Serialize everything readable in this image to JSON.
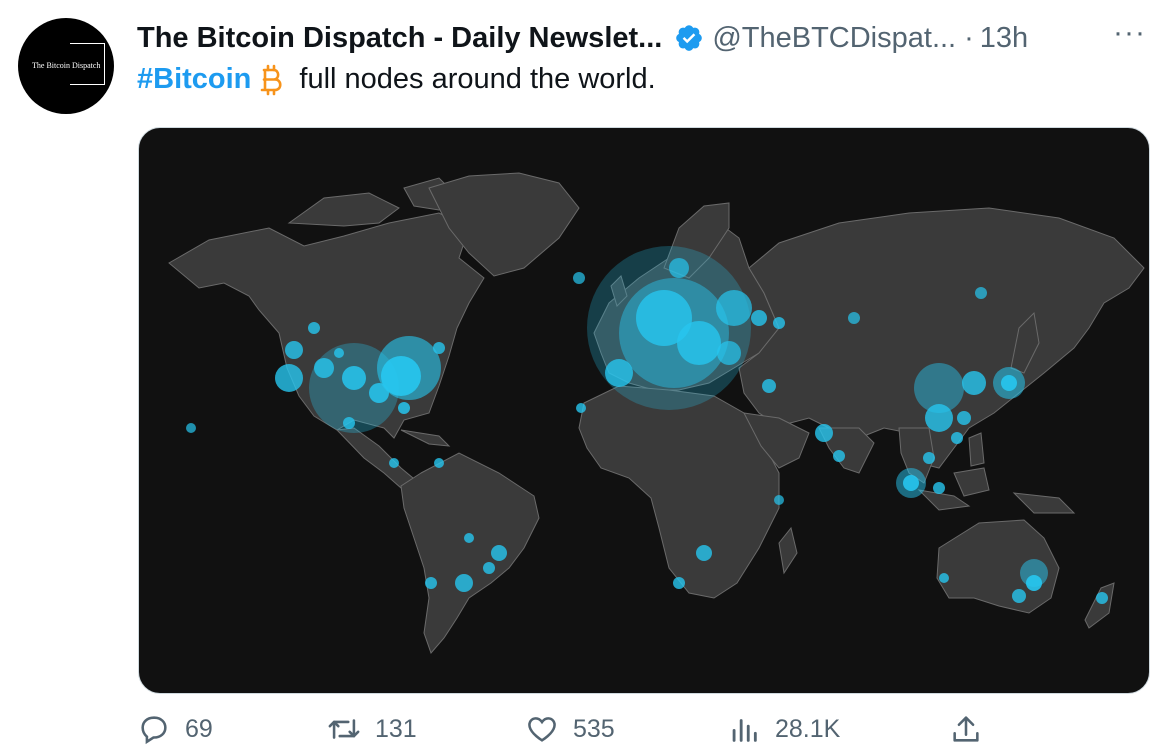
{
  "tweet": {
    "avatar_text": "The Bitcoin Dispatch",
    "display_name": "The Bitcoin Dispatch - Daily Newslet...",
    "handle": "@TheBTCDispat...",
    "separator": "·",
    "time": "13h",
    "more_label": "···",
    "hashtag": "#Bitcoin",
    "body": "full nodes around the world.",
    "verified_color": "#1d9bf0",
    "bitcoin_color": "#f7931a"
  },
  "actions": {
    "replies": "69",
    "retweets": "131",
    "likes": "535",
    "views": "28.1K"
  },
  "colors": {
    "map_background": "#111111",
    "land": "#3a3a3a",
    "node_dot": "#27c6ef"
  }
}
